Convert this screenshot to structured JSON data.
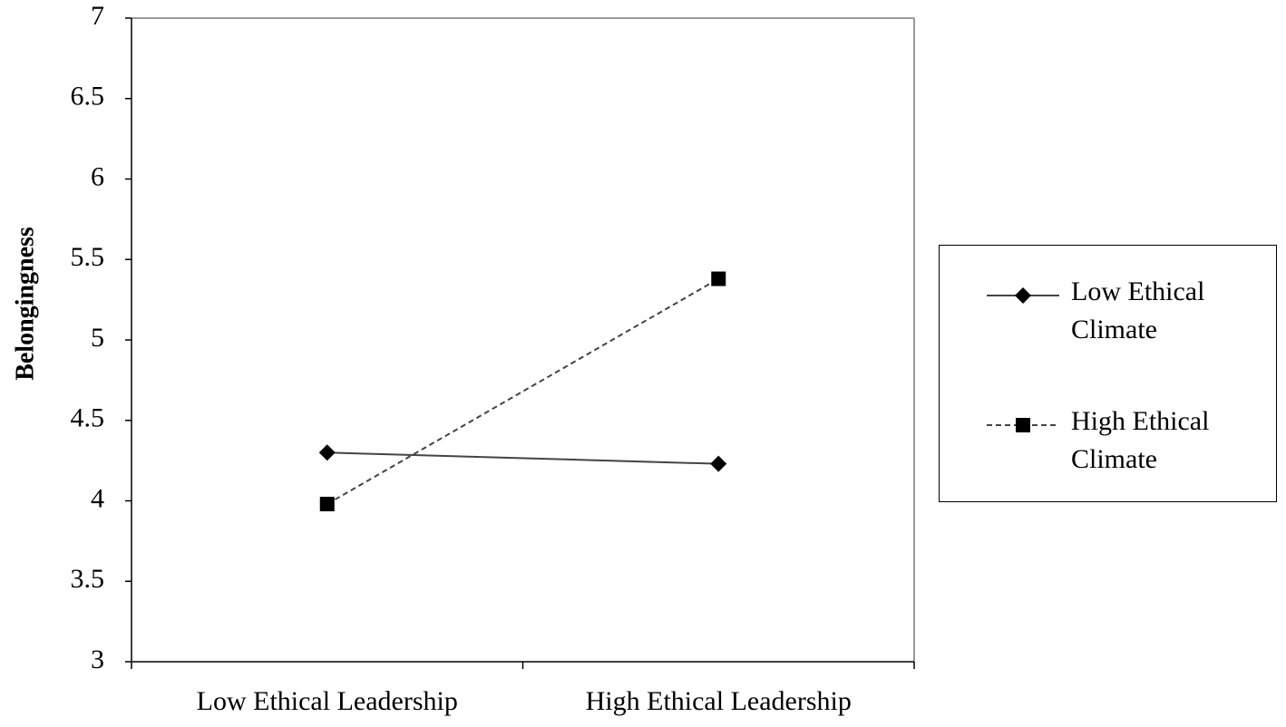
{
  "chart_data": {
    "type": "line",
    "y_label": "Belongingness",
    "categories": [
      "Low Ethical Leadership",
      "High Ethical Leadership"
    ],
    "series": [
      {
        "name": "Low Ethical Climate",
        "color": "#000000",
        "line_style": "solid",
        "marker": "diamond",
        "values": [
          4.3,
          4.23
        ]
      },
      {
        "name": "High Ethical Climate",
        "color": "#000000",
        "line_style": "dashed",
        "marker": "square",
        "values": [
          3.98,
          5.38
        ]
      }
    ],
    "ylim": [
      3,
      7
    ],
    "yticks": [
      3,
      3.5,
      4,
      4.5,
      5,
      5.5,
      6,
      6.5,
      7
    ],
    "grid": false,
    "legend": "right"
  }
}
